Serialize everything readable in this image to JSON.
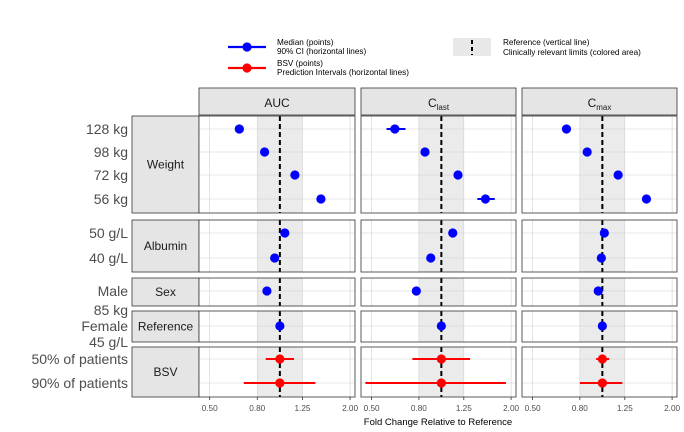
{
  "chart_data": {
    "type": "scatter",
    "subtype": "forest-plot",
    "xlabel": "Fold Change Relative to Reference",
    "x_scale": "log",
    "xlim": [
      0.45,
      2.1
    ],
    "x_ticks": [
      0.5,
      0.8,
      1.25,
      2.0
    ],
    "x_tick_labels": [
      "0.50",
      "0.80",
      "1.25",
      "2.00"
    ],
    "reference_line": 1.0,
    "clinically_relevant_limits": [
      0.8,
      1.25
    ],
    "grid": true,
    "legend": {
      "placement": "top",
      "items": [
        {
          "key": "median",
          "text1": "Median (points)",
          "text2": "90% CI (horizontal lines)",
          "color": "#0000ff"
        },
        {
          "key": "bsv",
          "text1": "BSV (points)",
          "text2": "Prediction Intervals (horizontal lines)",
          "color": "#ff0000"
        },
        {
          "key": "ref",
          "text1": "Reference (vertical line)",
          "text2": "Clinically relevant limits (colored area)",
          "color": "#000000"
        }
      ]
    },
    "columns": [
      {
        "id": "auc",
        "label": "AUC",
        "sub": ""
      },
      {
        "id": "clast",
        "label": "C",
        "sub": "last"
      },
      {
        "id": "cmax",
        "label": "C",
        "sub": "max"
      }
    ],
    "groups": [
      {
        "label": "Weight",
        "rows": [
          {
            "label": "128 kg",
            "color": "#0000ff",
            "values": [
              [
                0.67,
                0.65,
                0.7
              ],
              [
                0.63,
                0.58,
                0.7
              ],
              [
                0.7,
                0.68,
                0.72
              ]
            ]
          },
          {
            "label": "98 kg",
            "color": "#0000ff",
            "values": [
              [
                0.86,
                0.85,
                0.87
              ],
              [
                0.85,
                0.84,
                0.86
              ],
              [
                0.86,
                0.85,
                0.87
              ]
            ]
          },
          {
            "label": "72 kg",
            "color": "#0000ff",
            "values": [
              [
                1.16,
                1.14,
                1.18
              ],
              [
                1.18,
                1.16,
                1.21
              ],
              [
                1.17,
                1.15,
                1.19
              ]
            ]
          },
          {
            "label": "56 kg",
            "color": "#0000ff",
            "values": [
              [
                1.5,
                1.46,
                1.55
              ],
              [
                1.55,
                1.43,
                1.7
              ],
              [
                1.55,
                1.52,
                1.58
              ]
            ]
          }
        ]
      },
      {
        "label": "Albumin",
        "rows": [
          {
            "label": "50 g/L",
            "color": "#0000ff",
            "values": [
              [
                1.05,
                1.03,
                1.07
              ],
              [
                1.12,
                1.1,
                1.14
              ],
              [
                1.02,
                1.01,
                1.03
              ]
            ]
          },
          {
            "label": "40 g/L",
            "color": "#0000ff",
            "values": [
              [
                0.95,
                0.94,
                0.96
              ],
              [
                0.9,
                0.89,
                0.91
              ],
              [
                0.99,
                0.98,
                1.0
              ]
            ]
          }
        ]
      },
      {
        "label": "Sex",
        "rows": [
          {
            "label": "Male",
            "color": "#0000ff",
            "values": [
              [
                0.88,
                0.86,
                0.9
              ],
              [
                0.78,
                0.75,
                0.81
              ],
              [
                0.96,
                0.94,
                0.98
              ]
            ]
          }
        ]
      },
      {
        "label": "Reference",
        "rows": [
          {
            "label": "85 kg\nFemale\n45 g/L",
            "color": "#0000ff",
            "values": [
              [
                1.0,
                1.0,
                1.0
              ],
              [
                1.0,
                1.0,
                1.0
              ],
              [
                1.0,
                1.0,
                1.0
              ]
            ]
          }
        ]
      },
      {
        "label": "BSV",
        "rows": [
          {
            "label": "50% of patients",
            "color": "#ff0000",
            "values": [
              [
                1.0,
                0.87,
                1.15
              ],
              [
                1.0,
                0.75,
                1.33
              ],
              [
                1.0,
                0.94,
                1.07
              ]
            ]
          },
          {
            "label": "90% of patients",
            "color": "#ff0000",
            "values": [
              [
                1.0,
                0.7,
                1.42
              ],
              [
                1.0,
                0.47,
                1.9
              ],
              [
                1.0,
                0.8,
                1.22
              ]
            ]
          }
        ]
      }
    ]
  }
}
